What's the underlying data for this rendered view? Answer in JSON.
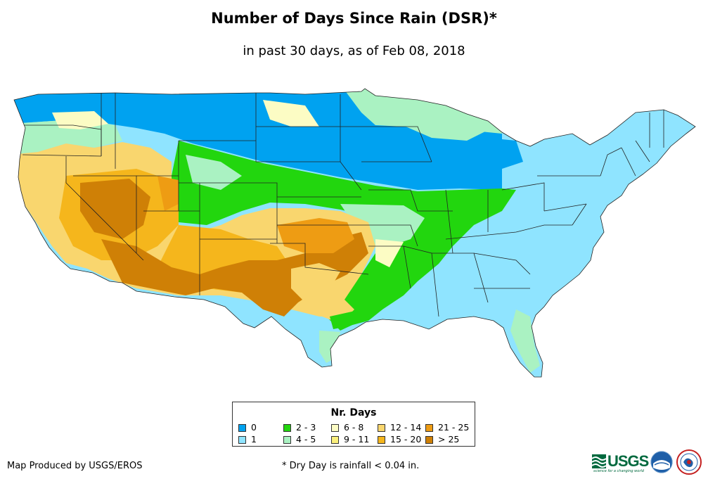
{
  "header": {
    "title": "Number of Days Since Rain (DSR)*",
    "subtitle": "in past 30 days, as of Feb 08, 2018"
  },
  "legend": {
    "title": "Nr. Days",
    "items": [
      {
        "label": "0",
        "color": "#00a2f0"
      },
      {
        "label": "1",
        "color": "#8fe4ff"
      },
      {
        "label": "2 - 3",
        "color": "#22d60e"
      },
      {
        "label": "4 - 5",
        "color": "#aaf2c2"
      },
      {
        "label": "6 - 8",
        "color": "#fcfcc4"
      },
      {
        "label": "9 - 11",
        "color": "#fbf07c"
      },
      {
        "label": "12 - 14",
        "color": "#f9d66e"
      },
      {
        "label": "15 - 20",
        "color": "#f5b61c"
      },
      {
        "label": "21 - 25",
        "color": "#ee9c13"
      },
      {
        "label": "> 25",
        "color": "#cf8006"
      }
    ]
  },
  "footer": {
    "credit": "Map Produced by USGS/EROS",
    "note": "* Dry Day is rainfall < 0.04 in."
  },
  "logos": {
    "usgs": "USGS",
    "usgs_tagline": "science for a changing world",
    "noaa": "noaa",
    "nws": "NATIONAL WEATHER SERVICE"
  }
}
